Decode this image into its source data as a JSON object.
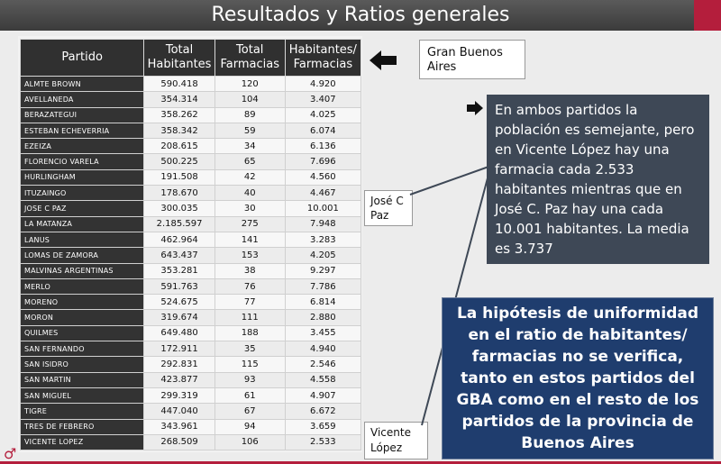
{
  "title": "Resultados y Ratios generales",
  "table": {
    "headers": [
      "Partido",
      "Total Habitantes",
      "Total Farmacias",
      "Habitantes/ Farmacias"
    ],
    "rows": [
      [
        "ALMTE BROWN",
        "590.418",
        "120",
        "4.920"
      ],
      [
        "AVELLANEDA",
        "354.314",
        "104",
        "3.407"
      ],
      [
        "BERAZATEGUI",
        "358.262",
        "89",
        "4.025"
      ],
      [
        "ESTEBAN ECHEVERRIA",
        "358.342",
        "59",
        "6.074"
      ],
      [
        "EZEIZA",
        "208.615",
        "34",
        "6.136"
      ],
      [
        "FLORENCIO VARELA",
        "500.225",
        "65",
        "7.696"
      ],
      [
        "HURLINGHAM",
        "191.508",
        "42",
        "4.560"
      ],
      [
        "ITUZAINGO",
        "178.670",
        "40",
        "4.467"
      ],
      [
        "JOSE C PAZ",
        "300.035",
        "30",
        "10.001"
      ],
      [
        "LA MATANZA",
        "2.185.597",
        "275",
        "7.948"
      ],
      [
        "LANUS",
        "462.964",
        "141",
        "3.283"
      ],
      [
        "LOMAS DE ZAMORA",
        "643.437",
        "153",
        "4.205"
      ],
      [
        "MALVINAS ARGENTINAS",
        "353.281",
        "38",
        "9.297"
      ],
      [
        "MERLO",
        "591.763",
        "76",
        "7.786"
      ],
      [
        "MORENO",
        "524.675",
        "77",
        "6.814"
      ],
      [
        "MORON",
        "319.674",
        "111",
        "2.880"
      ],
      [
        "QUILMES",
        "649.480",
        "188",
        "3.455"
      ],
      [
        "SAN FERNANDO",
        "172.911",
        "35",
        "4.940"
      ],
      [
        "SAN ISIDRO",
        "292.831",
        "115",
        "2.546"
      ],
      [
        "SAN MARTIN",
        "423.877",
        "93",
        "4.558"
      ],
      [
        "SAN MIGUEL",
        "299.319",
        "61",
        "4.907"
      ],
      [
        "TIGRE",
        "447.040",
        "67",
        "6.672"
      ],
      [
        "TRES DE FEBRERO",
        "343.961",
        "94",
        "3.659"
      ],
      [
        "VICENTE LOPEZ",
        "268.509",
        "106",
        "2.533"
      ]
    ]
  },
  "gba_label": "Gran  Buenos Aires",
  "info_text": "En ambos partidos la población es semejante, pero en Vicente López hay una farmacia cada 2.533 habitantes mientras que en José C. Paz hay una cada 10.001 habitantes. La media es 3.737",
  "jc_label": "José C Paz",
  "vl_label": "Vicente López",
  "hypothesis_text": "La hipótesis de uniformidad en el ratio de habitantes/ farmacias no se verifica, tanto en estos partidos del GBA como en el resto de los partidos de la provincia de Buenos Aires",
  "colors": {
    "accent": "#b41e3c",
    "info_bg": "#3e4856",
    "hyp_bg": "#1f3d6e",
    "header_bg": "#303030"
  },
  "icons": [
    "left-arrow-icon",
    "bullet-arrow-icon",
    "logo-icon"
  ]
}
